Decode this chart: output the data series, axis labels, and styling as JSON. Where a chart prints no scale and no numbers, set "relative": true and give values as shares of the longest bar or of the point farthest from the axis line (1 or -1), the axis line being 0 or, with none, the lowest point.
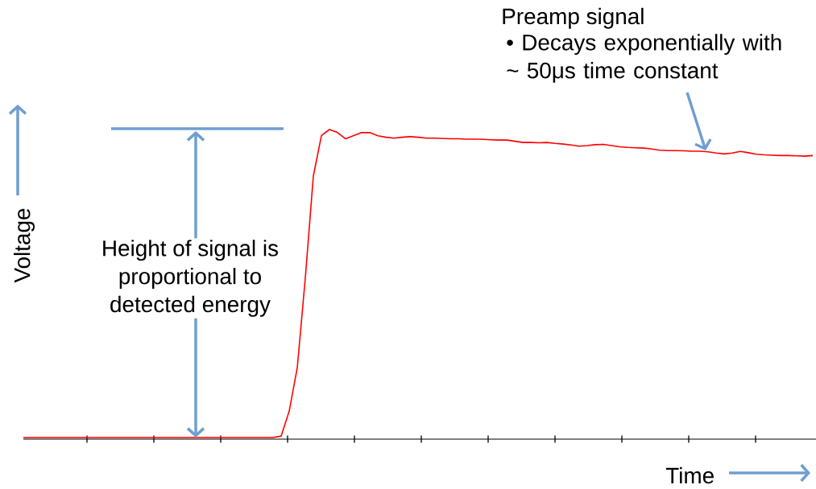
{
  "chart_data": {
    "type": "line",
    "relative": true,
    "color": "#ff0000",
    "xlabel": "Time",
    "ylabel": "Voltage",
    "annotations": [
      "Preamp signal",
      "• Decays exponentially with ~ 50μs time constant",
      "Height of signal is proportional to detected energy"
    ],
    "categories": [
      null,
      null,
      null,
      null,
      null,
      null,
      null,
      null,
      null,
      null,
      null,
      null,
      null,
      null,
      null,
      null,
      null,
      null,
      null,
      null,
      null,
      null,
      null,
      null,
      null,
      null,
      null,
      null,
      null,
      null,
      null,
      null,
      null,
      null,
      null,
      null,
      null,
      null,
      null,
      null,
      null,
      null,
      null,
      null,
      null,
      null,
      null,
      null,
      null,
      null,
      null,
      null,
      null,
      null,
      null,
      null,
      null,
      null,
      null,
      null,
      null,
      null,
      null,
      null,
      null,
      null,
      null,
      null,
      null,
      null,
      null,
      null,
      null,
      null,
      null,
      null,
      null,
      null,
      null,
      null,
      null,
      null,
      null,
      null,
      null,
      null,
      null,
      null,
      null,
      null,
      null,
      null,
      null,
      null,
      null,
      null,
      null,
      null,
      null
    ],
    "values": [
      0.005,
      0.005,
      0.005,
      0.005,
      0.005,
      0.005,
      0.005,
      0.005,
      0.005,
      0.005,
      0.005,
      0.005,
      0.005,
      0.005,
      0.005,
      0.005,
      0.005,
      0.005,
      0.005,
      0.005,
      0.005,
      0.005,
      0.005,
      0.005,
      0.005,
      0.005,
      0.005,
      0.005,
      0.005,
      0.005,
      0.005,
      0.005,
      0.01,
      0.09,
      0.23,
      0.52,
      0.85,
      0.98,
      1.0,
      0.99,
      0.97,
      0.98,
      0.99,
      0.99,
      0.98,
      0.975,
      0.972,
      0.975,
      0.977,
      0.975,
      0.972,
      0.972,
      0.971,
      0.97,
      0.97,
      0.969,
      0.969,
      0.968,
      0.967,
      0.966,
      0.966,
      0.962,
      0.958,
      0.958,
      0.957,
      0.958,
      0.955,
      0.953,
      0.95,
      0.946,
      0.948,
      0.951,
      0.952,
      0.948,
      0.944,
      0.942,
      0.941,
      0.94,
      0.937,
      0.933,
      0.932,
      0.932,
      0.931,
      0.93,
      0.93,
      0.928,
      0.924,
      0.921,
      0.924,
      0.929,
      0.925,
      0.92,
      0.918,
      0.917,
      0.916,
      0.916,
      0.915,
      0.914,
      0.916
    ]
  }
}
